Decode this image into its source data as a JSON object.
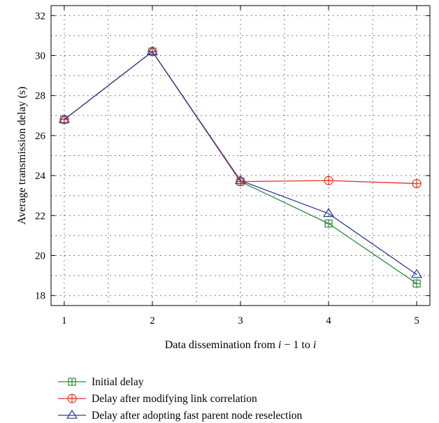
{
  "chart_data": {
    "type": "line",
    "title": "",
    "xlabel": {
      "prefix": "Data dissemination from ",
      "var1": "i",
      "middle": " − 1 to ",
      "var2": "i"
    },
    "ylabel": "Average transmission delay (s)",
    "x": [
      1,
      2,
      3,
      4,
      5
    ],
    "xlim": [
      0.85,
      5.15
    ],
    "ylim": [
      17.5,
      32.5
    ],
    "xticks": [
      "1",
      "2",
      "3",
      "4",
      "5"
    ],
    "yticks": [
      "18",
      "20",
      "22",
      "24",
      "26",
      "28",
      "30",
      "32"
    ],
    "grid": true,
    "legend_position": "below",
    "series": [
      {
        "name": "Initial delay",
        "marker": "square-plus",
        "color": "#2e8b3e",
        "values": [
          26.8,
          30.2,
          23.7,
          21.6,
          18.6
        ]
      },
      {
        "name": "Delay after modifying link correlation",
        "marker": "circle-plus",
        "color": "#e8332b",
        "values": [
          26.8,
          30.2,
          23.7,
          23.75,
          23.6
        ]
      },
      {
        "name": "Delay after adopting fast parent node reselection",
        "marker": "triangle",
        "color": "#2e3e9a",
        "values": [
          26.8,
          30.2,
          23.75,
          22.1,
          19.05
        ]
      }
    ]
  }
}
